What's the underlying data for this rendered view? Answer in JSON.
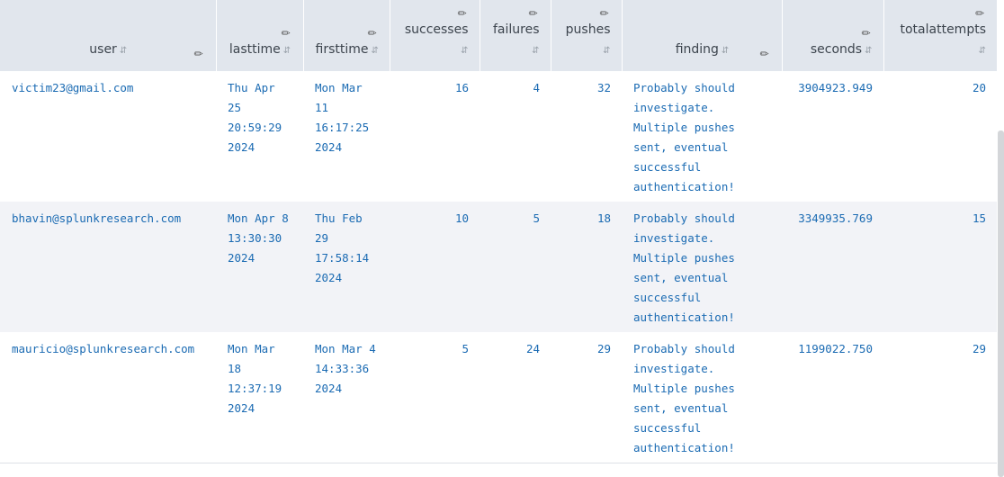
{
  "columns": [
    {
      "label": "user",
      "align": "left"
    },
    {
      "label": "lasttime",
      "align": "left"
    },
    {
      "label": "firsttime",
      "align": "left"
    },
    {
      "label": "successes",
      "align": "right"
    },
    {
      "label": "failures",
      "align": "right"
    },
    {
      "label": "pushes",
      "align": "right"
    },
    {
      "label": "finding",
      "align": "left"
    },
    {
      "label": "seconds",
      "align": "right"
    },
    {
      "label": "totalattempts",
      "align": "right"
    }
  ],
  "rows": [
    {
      "user": "victim23@gmail.com",
      "lasttime": "Thu Apr 25 20:59:29 2024",
      "firsttime": "Mon Mar 11 16:17:25 2024",
      "successes": "16",
      "failures": "4",
      "pushes": "32",
      "finding": "Probably should investigate. Multiple pushes sent, eventual successful authentication!",
      "seconds": "3904923.949",
      "totalattempts": "20"
    },
    {
      "user": "bhavin@splunkresearch.com",
      "lasttime": "Mon Apr 8 13:30:30 2024",
      "firsttime": "Thu Feb 29 17:58:14 2024",
      "successes": "10",
      "failures": "5",
      "pushes": "18",
      "finding": "Probably should investigate. Multiple pushes sent, eventual successful authentication!",
      "seconds": "3349935.769",
      "totalattempts": "15"
    },
    {
      "user": "mauricio@splunkresearch.com",
      "lasttime": "Mon Mar 18 12:37:19 2024",
      "firsttime": "Mon Mar 4 14:33:36 2024",
      "successes": "5",
      "failures": "24",
      "pushes": "29",
      "finding": "Probably should investigate. Multiple pushes sent, eventual successful authentication!",
      "seconds": "1199022.750",
      "totalattempts": "29"
    }
  ],
  "icons": {
    "sort": "sort-icon",
    "edit": "pencil-icon"
  },
  "colors": {
    "header_bg": "#e1e6ed",
    "link_text": "#1b6bb3",
    "alt_row": "#f2f3f7"
  }
}
